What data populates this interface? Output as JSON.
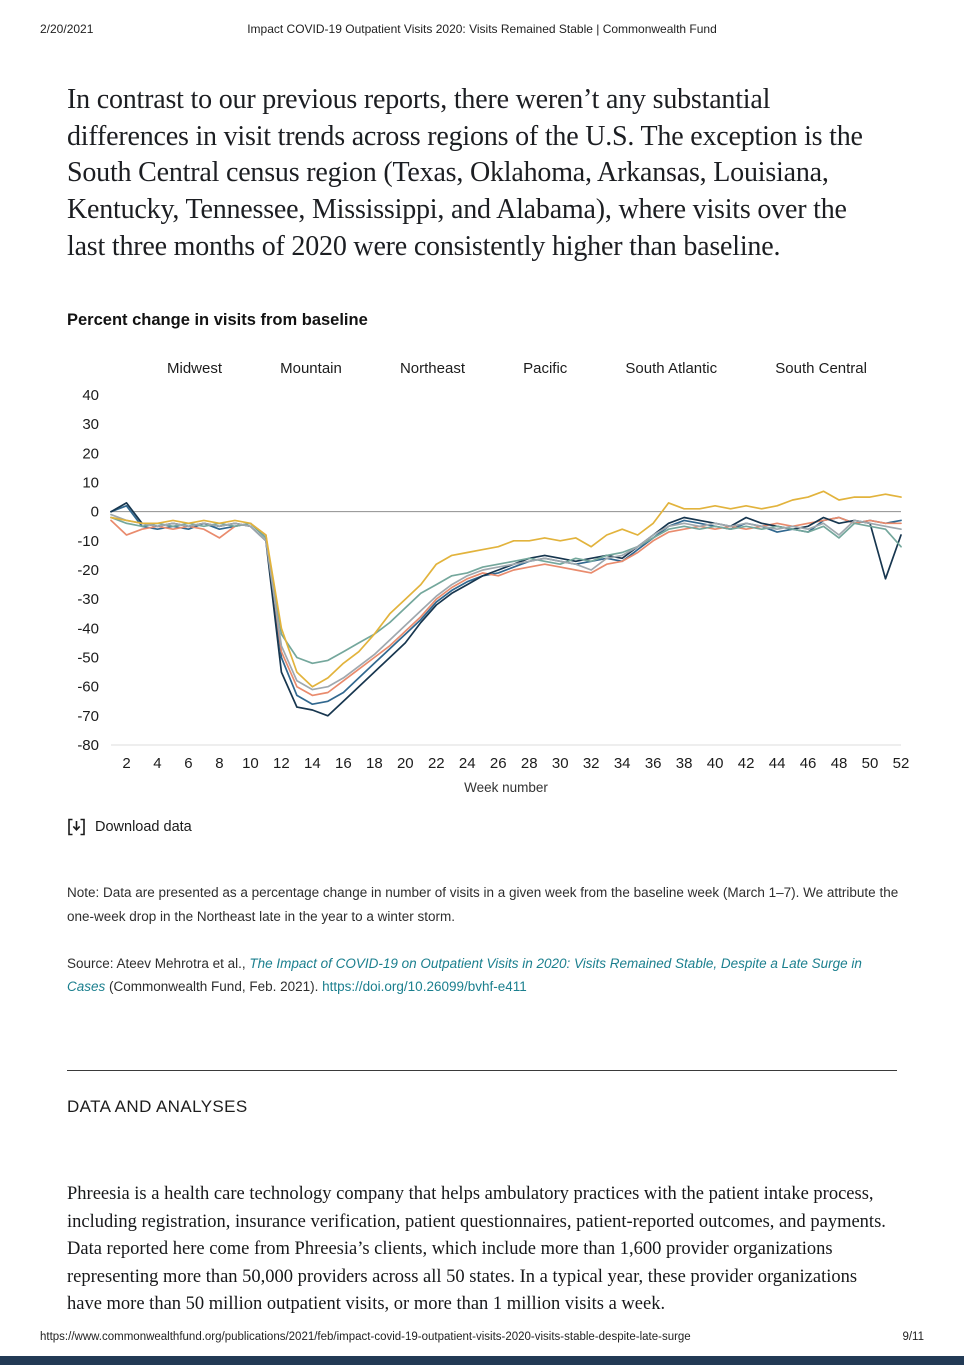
{
  "print_header": {
    "date": "2/20/2021",
    "title": "Impact COVID-19 Outpatient Visits 2020: Visits Remained Stable | Commonwealth Fund"
  },
  "intro_paragraph": "In contrast to our previous reports, there weren’t any substantial differences in visit trends across regions of the U.S. The exception is the South Central census region (Texas, Oklahoma, Arkansas, Louisiana, Kentucky, Tennessee, Mississippi, and Alabama), where visits over the last three months of 2020 were consistently higher than baseline.",
  "chart": {
    "title": "Percent change in visits from baseline",
    "download_label": "Download data"
  },
  "chart_data": {
    "type": "line",
    "title": "Percent change in visits from baseline",
    "xlabel": "Week number",
    "ylabel": "",
    "ylim": [
      -80,
      40
    ],
    "yticks": [
      40,
      30,
      20,
      10,
      0,
      -10,
      -20,
      -30,
      -40,
      -50,
      -60,
      -70,
      -80
    ],
    "xticks": [
      2,
      4,
      6,
      8,
      10,
      12,
      14,
      16,
      18,
      20,
      22,
      24,
      26,
      28,
      30,
      32,
      34,
      36,
      38,
      40,
      42,
      44,
      46,
      48,
      50,
      52
    ],
    "legend_position": "top",
    "grid": "zero-line-only",
    "x": [
      1,
      2,
      3,
      4,
      5,
      6,
      7,
      8,
      9,
      10,
      11,
      12,
      13,
      14,
      15,
      16,
      17,
      18,
      19,
      20,
      21,
      22,
      23,
      24,
      25,
      26,
      27,
      28,
      29,
      30,
      31,
      32,
      33,
      34,
      35,
      36,
      37,
      38,
      39,
      40,
      41,
      42,
      43,
      44,
      45,
      46,
      47,
      48,
      49,
      50,
      51,
      52
    ],
    "series": [
      {
        "name": "Midwest",
        "color": "#31688f",
        "values": [
          0,
          2,
          -5,
          -6,
          -5,
          -6,
          -4,
          -6,
          -5,
          -4,
          -9,
          -50,
          -63,
          -66,
          -65,
          -62,
          -57,
          -52,
          -47,
          -42,
          -37,
          -31,
          -27,
          -24,
          -22,
          -21,
          -19,
          -17,
          -16,
          -17,
          -18,
          -17,
          -16,
          -17,
          -13,
          -9,
          -5,
          -3,
          -4,
          -5,
          -6,
          -4,
          -5,
          -7,
          -6,
          -7,
          -3,
          -2,
          -4,
          -3,
          -4,
          -3
        ]
      },
      {
        "name": "Mountain",
        "color": "#e98b6d",
        "values": [
          -3,
          -8,
          -6,
          -5,
          -6,
          -5,
          -6,
          -9,
          -5,
          -4,
          -8,
          -48,
          -60,
          -63,
          -62,
          -58,
          -54,
          -50,
          -46,
          -41,
          -36,
          -30,
          -26,
          -23,
          -21,
          -22,
          -20,
          -19,
          -18,
          -19,
          -20,
          -21,
          -18,
          -17,
          -14,
          -10,
          -7,
          -6,
          -5,
          -6,
          -5,
          -6,
          -5,
          -4,
          -5,
          -4,
          -3,
          -2,
          -4,
          -3,
          -4,
          -4
        ]
      },
      {
        "name": "Northeast",
        "color": "#17364f",
        "values": [
          0,
          3,
          -4,
          -5,
          -4,
          -5,
          -4,
          -5,
          -4,
          -5,
          -10,
          -55,
          -67,
          -68,
          -70,
          -65,
          -60,
          -55,
          -50,
          -45,
          -38,
          -32,
          -28,
          -25,
          -22,
          -20,
          -18,
          -16,
          -15,
          -16,
          -17,
          -16,
          -15,
          -16,
          -12,
          -8,
          -4,
          -2,
          -3,
          -4,
          -5,
          -2,
          -4,
          -5,
          -6,
          -5,
          -2,
          -4,
          -3,
          -4,
          -23,
          -8
        ]
      },
      {
        "name": "Pacific",
        "color": "#74a79c",
        "values": [
          -2,
          -4,
          -5,
          -4,
          -5,
          -4,
          -5,
          -4,
          -5,
          -4,
          -9,
          -42,
          -50,
          -52,
          -51,
          -48,
          -45,
          -42,
          -38,
          -33,
          -28,
          -25,
          -22,
          -21,
          -19,
          -18,
          -17,
          -16,
          -17,
          -18,
          -16,
          -17,
          -15,
          -14,
          -12,
          -9,
          -6,
          -5,
          -6,
          -5,
          -6,
          -5,
          -6,
          -5,
          -6,
          -7,
          -5,
          -9,
          -4,
          -5,
          -6,
          -12
        ]
      },
      {
        "name": "South Atlantic",
        "color": "#9fa8ae",
        "values": [
          -1,
          -3,
          -4,
          -5,
          -4,
          -5,
          -4,
          -5,
          -4,
          -5,
          -10,
          -46,
          -58,
          -61,
          -60,
          -57,
          -53,
          -49,
          -44,
          -39,
          -34,
          -29,
          -25,
          -22,
          -20,
          -19,
          -18,
          -17,
          -16,
          -17,
          -18,
          -20,
          -16,
          -15,
          -12,
          -8,
          -5,
          -4,
          -5,
          -4,
          -5,
          -4,
          -5,
          -6,
          -5,
          -6,
          -4,
          -8,
          -3,
          -4,
          -5,
          -6
        ]
      },
      {
        "name": "South Central",
        "color": "#e2b33c",
        "values": [
          -2,
          -3,
          -4,
          -4,
          -3,
          -4,
          -3,
          -4,
          -3,
          -4,
          -8,
          -40,
          -55,
          -60,
          -57,
          -52,
          -48,
          -42,
          -35,
          -30,
          -25,
          -18,
          -15,
          -14,
          -13,
          -12,
          -10,
          -10,
          -9,
          -10,
          -9,
          -12,
          -8,
          -6,
          -8,
          -4,
          3,
          1,
          1,
          2,
          1,
          2,
          1,
          2,
          4,
          5,
          7,
          4,
          5,
          5,
          6,
          5
        ]
      }
    ]
  },
  "note": "Note: Data are presented as a percentage change in number of visits in a given week from the baseline week (March 1–7). We attribute the one-week drop in the Northeast late in the year to a winter storm.",
  "source": {
    "prefix": "Source: Ateev Mehrotra et al., ",
    "link_title": "The Impact of COVID-19 on Outpatient Visits in 2020: Visits Remained Stable, Despite a Late Surge in Cases",
    "suffix": " (Commonwealth Fund, Feb. 2021). ",
    "doi": "https://doi.org/10.26099/bvhf-e411"
  },
  "section": {
    "heading": "DATA AND ANALYSES",
    "body": "Phreesia is a health care technology company that helps ambulatory practices with the patient intake process, including registration, insurance verification, patient questionnaires, patient-reported outcomes, and payments. Data reported here come from Phreesia’s clients, which include more than 1,600 provider organizations representing more than 50,000 providers across all 50 states. In a typical year, these provider organizations have more than 50 million outpatient visits, or more than 1 million visits a week."
  },
  "print_footer": {
    "url": "https://www.commonwealthfund.org/publications/2021/feb/impact-covid-19-outpatient-visits-2020-visits-stable-despite-late-surge",
    "page": "9/11"
  }
}
